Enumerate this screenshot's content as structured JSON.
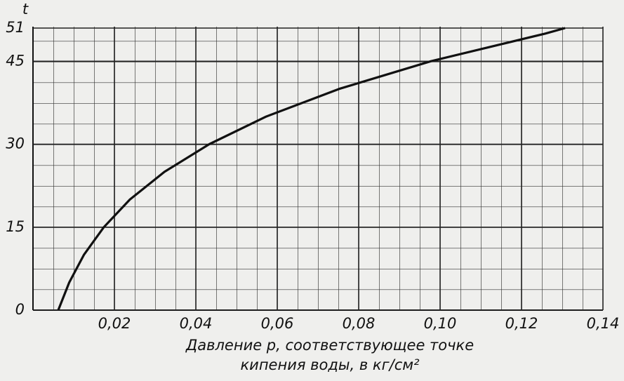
{
  "chart_data": {
    "type": "line",
    "ylabel": "t",
    "xlabel": [
      "Давление р, соответствующее точке",
      "кипения воды, в кг/см²"
    ],
    "x": [
      0.0062,
      0.0089,
      0.0125,
      0.0174,
      0.0238,
      0.0323,
      0.0433,
      0.0573,
      0.0752,
      0.0977,
      0.1258,
      0.1307
    ],
    "values": [
      0,
      5,
      10,
      15,
      20,
      25,
      30,
      35,
      40,
      45,
      50,
      51
    ],
    "color": "#111111",
    "xlim": [
      0,
      0.14
    ],
    "ylim": [
      0,
      51
    ],
    "xticks": [
      {
        "value": 0.02,
        "label": "0,02"
      },
      {
        "value": 0.04,
        "label": "0,04"
      },
      {
        "value": 0.06,
        "label": "0,06"
      },
      {
        "value": 0.08,
        "label": "0,08"
      },
      {
        "value": 0.1,
        "label": "0,10"
      },
      {
        "value": 0.12,
        "label": "0,12"
      },
      {
        "value": 0.14,
        "label": "0,14"
      }
    ],
    "yticks": [
      0,
      15,
      30,
      45,
      51
    ],
    "grid": true
  }
}
